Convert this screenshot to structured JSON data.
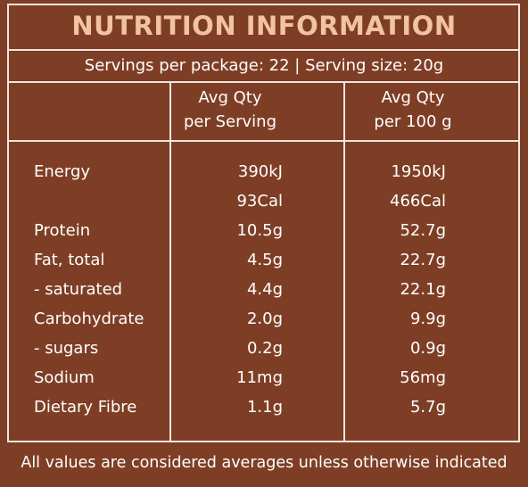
{
  "header": {
    "title": "NUTRITION INFORMATION",
    "servings": "Servings per package: 22 | Serving size: 20g"
  },
  "table": {
    "columns": [
      [
        "Avg Qty",
        "per Serving"
      ],
      [
        "Avg Qty",
        "per 100 g"
      ]
    ],
    "rows": [
      {
        "label": "Energy",
        "values": [
          [
            "390kJ",
            "93Cal"
          ],
          [
            "1950kJ",
            "466Cal"
          ]
        ]
      },
      {
        "label": "Protein",
        "values": [
          [
            "10.5g"
          ],
          [
            "52.7g"
          ]
        ]
      },
      {
        "label": "Fat, total",
        "values": [
          [
            "4.5g"
          ],
          [
            "22.7g"
          ]
        ]
      },
      {
        "label": "- saturated",
        "values": [
          [
            "4.4g"
          ],
          [
            "22.1g"
          ]
        ]
      },
      {
        "label": "Carbohydrate",
        "values": [
          [
            "2.0g"
          ],
          [
            "9.9g"
          ]
        ]
      },
      {
        "label": "- sugars",
        "values": [
          [
            "0.2g"
          ],
          [
            "0.9g"
          ]
        ]
      },
      {
        "label": "Sodium",
        "values": [
          [
            "11mg"
          ],
          [
            "56mg"
          ]
        ]
      },
      {
        "label": "Dietary Fibre",
        "values": [
          [
            "1.1g"
          ],
          [
            "5.7g"
          ]
        ]
      }
    ]
  },
  "footer": "All values are considered averages unless otherwise indicated"
}
